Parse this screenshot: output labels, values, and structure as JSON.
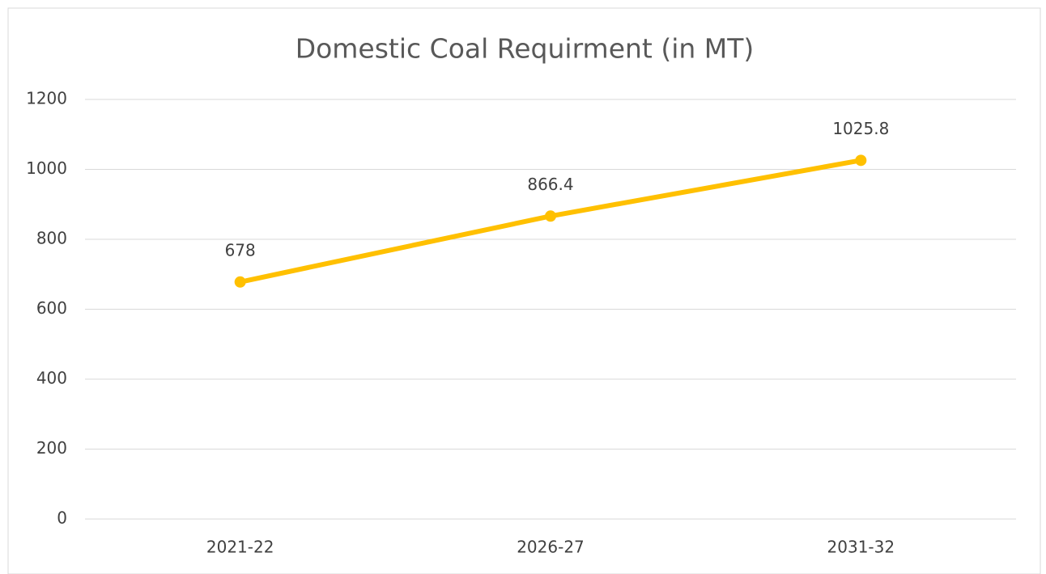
{
  "chart_data": {
    "type": "line",
    "title": "Domestic Coal Requirment (in MT)",
    "categories": [
      "2021-22",
      "2026-27",
      "2031-32"
    ],
    "series": [
      {
        "name": "Domestic Coal Requirment",
        "color": "#ffc000",
        "values": [
          678,
          866.4,
          1025.8
        ]
      }
    ],
    "ylim": [
      0,
      1200
    ],
    "yticks": [
      0,
      200,
      400,
      600,
      800,
      1000,
      1200
    ],
    "grid": true,
    "data_labels": true
  }
}
